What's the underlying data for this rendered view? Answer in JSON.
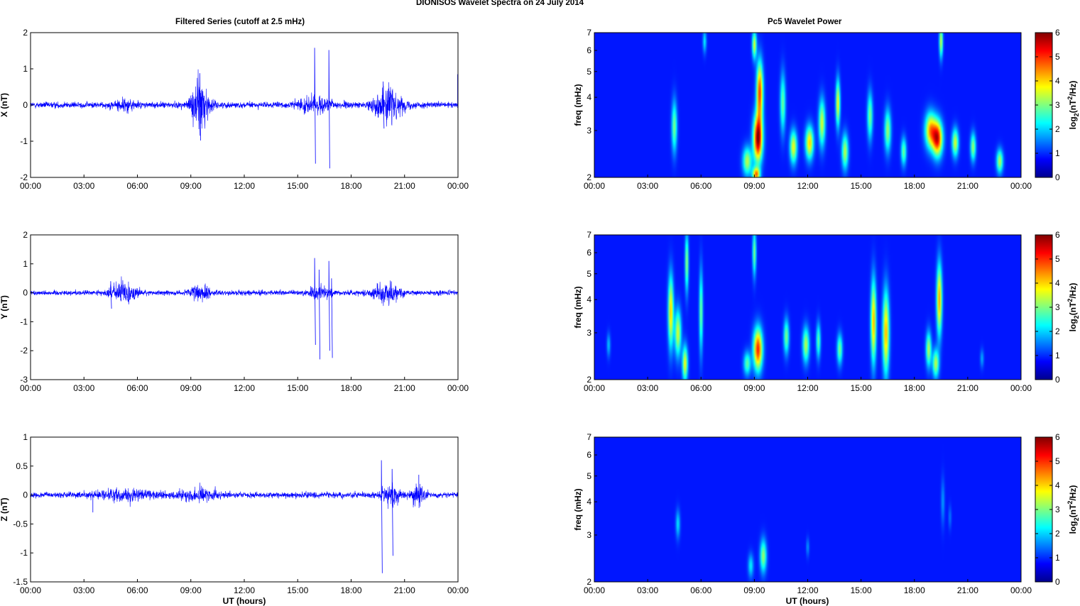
{
  "figure": {
    "title": "DIONISOS Wavelet Spectra on 24 July       2014",
    "left_title": "Filtered Series (cutoff at 2.5 mHz)",
    "right_title": "Pc5 Wavelet Power",
    "xlabel": "UT (hours)"
  },
  "chart_data": [
    {
      "type": "line",
      "component": "X",
      "ylabel": "X (nT)",
      "ylim": [
        -2,
        2
      ],
      "yticks": [
        2,
        1,
        0,
        -1,
        -2
      ],
      "xticks": [
        "00:00",
        "03:00",
        "06:00",
        "09:00",
        "12:00",
        "15:00",
        "18:00",
        "21:00",
        "00:00"
      ],
      "xlim_hours": [
        0,
        24
      ],
      "color": "#0000ff",
      "noise_amplitude_nT": 0.07,
      "bursts": [
        {
          "center_h": 5.3,
          "width_h": 0.6,
          "amp_nT": 0.12
        },
        {
          "center_h": 9.5,
          "width_h": 0.5,
          "amp_nT": 0.55
        },
        {
          "center_h": 20.1,
          "width_h": 0.7,
          "amp_nT": 0.4
        },
        {
          "center_h": 16.0,
          "width_h": 1.0,
          "amp_nT": 0.15
        }
      ],
      "spikes": [
        {
          "t_h": 9.5,
          "values_nT": [
            0.88,
            -0.98
          ]
        },
        {
          "t_h": 15.95,
          "values_nT": [
            1.58,
            -1.62
          ]
        },
        {
          "t_h": 16.75,
          "values_nT": [
            1.52,
            -1.75
          ]
        },
        {
          "t_h": 19.8,
          "values_nT": [
            0.65,
            -0.65
          ]
        },
        {
          "t_h": 23.98,
          "values_nT": [
            0.85
          ]
        }
      ]
    },
    {
      "type": "line",
      "component": "Y",
      "ylabel": "Y (nT)",
      "ylim": [
        -3,
        2
      ],
      "yticks": [
        2,
        1,
        0,
        -1,
        -2,
        -3
      ],
      "xticks": [
        "00:00",
        "03:00",
        "06:00",
        "09:00",
        "12:00",
        "15:00",
        "18:00",
        "21:00",
        "00:00"
      ],
      "xlim_hours": [
        0,
        24
      ],
      "color": "#0000ff",
      "noise_amplitude_nT": 0.07,
      "bursts": [
        {
          "center_h": 5.2,
          "width_h": 0.7,
          "amp_nT": 0.3
        },
        {
          "center_h": 9.5,
          "width_h": 0.5,
          "amp_nT": 0.25
        },
        {
          "center_h": 16.3,
          "width_h": 0.6,
          "amp_nT": 0.2
        },
        {
          "center_h": 19.9,
          "width_h": 0.7,
          "amp_nT": 0.35
        }
      ],
      "spikes": [
        {
          "t_h": 15.95,
          "values_nT": [
            1.2,
            -1.8
          ]
        },
        {
          "t_h": 16.2,
          "values_nT": [
            0.8,
            -2.3
          ]
        },
        {
          "t_h": 16.75,
          "values_nT": [
            1.1,
            -2.0
          ]
        },
        {
          "t_h": 16.9,
          "values_nT": [
            0.5,
            -2.25
          ]
        },
        {
          "t_h": 4.5,
          "values_nT": [
            0.4,
            -0.55
          ]
        }
      ]
    },
    {
      "type": "line",
      "component": "Z",
      "ylabel": "Z (nT)",
      "ylim": [
        -1.5,
        1
      ],
      "yticks": [
        1,
        0.5,
        0,
        -0.5,
        -1,
        -1.5
      ],
      "xticks": [
        "00:00",
        "03:00",
        "06:00",
        "09:00",
        "12:00",
        "15:00",
        "18:00",
        "21:00",
        "00:00"
      ],
      "xlim_hours": [
        0,
        24
      ],
      "color": "#0000ff",
      "noise_amplitude_nT": 0.04,
      "bursts": [
        {
          "center_h": 5.5,
          "width_h": 2.0,
          "amp_nT": 0.06
        },
        {
          "center_h": 9.5,
          "width_h": 1.0,
          "amp_nT": 0.08
        },
        {
          "center_h": 20.2,
          "width_h": 0.5,
          "amp_nT": 0.15
        },
        {
          "center_h": 21.8,
          "width_h": 0.4,
          "amp_nT": 0.12
        }
      ],
      "spikes": [
        {
          "t_h": 19.7,
          "values_nT": [
            0.6,
            -1.35
          ]
        },
        {
          "t_h": 20.3,
          "values_nT": [
            0.45,
            -1.05
          ]
        },
        {
          "t_h": 3.5,
          "values_nT": [
            -0.3
          ]
        },
        {
          "t_h": 21.8,
          "values_nT": [
            0.35
          ]
        }
      ]
    },
    {
      "type": "heatmap",
      "component": "X",
      "ylabel": "freq (mHz)",
      "yscale": "log",
      "ylim": [
        2,
        7
      ],
      "yticks": [
        2,
        3,
        4,
        5,
        6,
        7
      ],
      "xticks": [
        "00:00",
        "03:00",
        "06:00",
        "09:00",
        "12:00",
        "15:00",
        "18:00",
        "21:00",
        "00:00"
      ],
      "xlim_hours": [
        0,
        24
      ],
      "colorbar": {
        "label": "log2(nT2/Hz)",
        "range": [
          0,
          6
        ],
        "ticks": [
          0,
          1,
          2,
          3,
          4,
          5,
          6
        ],
        "colormap": "jet"
      },
      "blobs": [
        {
          "t_h": 4.5,
          "f_mHz": 3.1,
          "dt_h": 0.15,
          "span": 0.22,
          "peak": 2.4
        },
        {
          "t_h": 6.2,
          "f_mHz": 6.5,
          "dt_h": 0.1,
          "span": 0.1,
          "peak": 1.5
        },
        {
          "t_h": 8.6,
          "f_mHz": 2.3,
          "dt_h": 0.25,
          "span": 0.12,
          "peak": 2.8
        },
        {
          "t_h": 9.2,
          "f_mHz": 2.8,
          "dt_h": 0.25,
          "span": 0.2,
          "peak": 5.8
        },
        {
          "t_h": 9.3,
          "f_mHz": 4.2,
          "dt_h": 0.18,
          "span": 0.25,
          "peak": 4.6
        },
        {
          "t_h": 9.0,
          "f_mHz": 6.3,
          "dt_h": 0.12,
          "span": 0.12,
          "peak": 3.0
        },
        {
          "t_h": 9.1,
          "f_mHz": 2.05,
          "dt_h": 0.2,
          "span": 0.06,
          "peak": 4.0
        },
        {
          "t_h": 10.6,
          "f_mHz": 3.8,
          "dt_h": 0.15,
          "span": 0.25,
          "peak": 2.3
        },
        {
          "t_h": 11.2,
          "f_mHz": 2.6,
          "dt_h": 0.2,
          "span": 0.14,
          "peak": 3.2
        },
        {
          "t_h": 12.1,
          "f_mHz": 2.7,
          "dt_h": 0.22,
          "span": 0.14,
          "peak": 3.6
        },
        {
          "t_h": 12.8,
          "f_mHz": 3.2,
          "dt_h": 0.18,
          "span": 0.2,
          "peak": 3.0
        },
        {
          "t_h": 13.7,
          "f_mHz": 3.8,
          "dt_h": 0.12,
          "span": 0.2,
          "peak": 3.3
        },
        {
          "t_h": 14.1,
          "f_mHz": 2.5,
          "dt_h": 0.18,
          "span": 0.15,
          "peak": 2.8
        },
        {
          "t_h": 15.5,
          "f_mHz": 3.4,
          "dt_h": 0.15,
          "span": 0.2,
          "peak": 2.4
        },
        {
          "t_h": 16.5,
          "f_mHz": 3.0,
          "dt_h": 0.18,
          "span": 0.18,
          "peak": 2.6
        },
        {
          "t_h": 17.4,
          "f_mHz": 2.5,
          "dt_h": 0.15,
          "span": 0.12,
          "peak": 2.3
        },
        {
          "t_h": 18.9,
          "f_mHz": 3.0,
          "dt_h": 0.3,
          "span": 0.15,
          "peak": 3.8
        },
        {
          "t_h": 19.3,
          "f_mHz": 2.8,
          "dt_h": 0.28,
          "span": 0.15,
          "peak": 5.0
        },
        {
          "t_h": 19.5,
          "f_mHz": 6.5,
          "dt_h": 0.1,
          "span": 0.14,
          "peak": 3.0
        },
        {
          "t_h": 20.3,
          "f_mHz": 2.7,
          "dt_h": 0.18,
          "span": 0.12,
          "peak": 3.0
        },
        {
          "t_h": 21.3,
          "f_mHz": 2.6,
          "dt_h": 0.15,
          "span": 0.12,
          "peak": 2.6
        },
        {
          "t_h": 22.8,
          "f_mHz": 2.3,
          "dt_h": 0.18,
          "span": 0.1,
          "peak": 2.8
        }
      ]
    },
    {
      "type": "heatmap",
      "component": "Y",
      "ylabel": "freq (mHz)",
      "yscale": "log",
      "ylim": [
        2,
        7
      ],
      "yticks": [
        2,
        3,
        4,
        5,
        6,
        7
      ],
      "xticks": [
        "00:00",
        "03:00",
        "06:00",
        "09:00",
        "12:00",
        "15:00",
        "18:00",
        "21:00",
        "00:00"
      ],
      "xlim_hours": [
        0,
        24
      ],
      "colorbar": {
        "label": "log2(nT2/Hz)",
        "range": [
          0,
          6
        ],
        "ticks": [
          0,
          1,
          2,
          3,
          4,
          5,
          6
        ],
        "colormap": "jet"
      },
      "blobs": [
        {
          "t_h": 4.3,
          "f_mHz": 3.6,
          "dt_h": 0.15,
          "span": 0.3,
          "peak": 3.6
        },
        {
          "t_h": 4.7,
          "f_mHz": 3.0,
          "dt_h": 0.18,
          "span": 0.2,
          "peak": 3.0
        },
        {
          "t_h": 5.1,
          "f_mHz": 2.3,
          "dt_h": 0.15,
          "span": 0.15,
          "peak": 3.2
        },
        {
          "t_h": 5.2,
          "f_mHz": 5.5,
          "dt_h": 0.1,
          "span": 0.25,
          "peak": 2.6
        },
        {
          "t_h": 6.0,
          "f_mHz": 3.6,
          "dt_h": 0.1,
          "span": 0.35,
          "peak": 2.4
        },
        {
          "t_h": 9.2,
          "f_mHz": 2.6,
          "dt_h": 0.25,
          "span": 0.18,
          "peak": 4.8
        },
        {
          "t_h": 9.0,
          "f_mHz": 6.0,
          "dt_h": 0.1,
          "span": 0.2,
          "peak": 2.4
        },
        {
          "t_h": 8.6,
          "f_mHz": 2.3,
          "dt_h": 0.2,
          "span": 0.1,
          "peak": 2.2
        },
        {
          "t_h": 10.8,
          "f_mHz": 2.9,
          "dt_h": 0.15,
          "span": 0.15,
          "peak": 2.4
        },
        {
          "t_h": 11.9,
          "f_mHz": 2.7,
          "dt_h": 0.18,
          "span": 0.15,
          "peak": 2.8
        },
        {
          "t_h": 12.6,
          "f_mHz": 2.8,
          "dt_h": 0.12,
          "span": 0.15,
          "peak": 2.2
        },
        {
          "t_h": 13.8,
          "f_mHz": 2.6,
          "dt_h": 0.15,
          "span": 0.13,
          "peak": 2.4
        },
        {
          "t_h": 15.7,
          "f_mHz": 3.3,
          "dt_h": 0.15,
          "span": 0.35,
          "peak": 3.8
        },
        {
          "t_h": 16.4,
          "f_mHz": 3.0,
          "dt_h": 0.18,
          "span": 0.35,
          "peak": 3.8
        },
        {
          "t_h": 18.8,
          "f_mHz": 2.6,
          "dt_h": 0.15,
          "span": 0.15,
          "peak": 2.8
        },
        {
          "t_h": 19.4,
          "f_mHz": 4.0,
          "dt_h": 0.15,
          "span": 0.3,
          "peak": 3.9
        },
        {
          "t_h": 19.2,
          "f_mHz": 2.3,
          "dt_h": 0.18,
          "span": 0.12,
          "peak": 2.8
        },
        {
          "t_h": 0.8,
          "f_mHz": 2.7,
          "dt_h": 0.1,
          "span": 0.1,
          "peak": 1.2
        },
        {
          "t_h": 21.8,
          "f_mHz": 2.4,
          "dt_h": 0.1,
          "span": 0.08,
          "peak": 1.0
        }
      ]
    },
    {
      "type": "heatmap",
      "component": "Z",
      "ylabel": "freq (mHz)",
      "yscale": "log",
      "ylim": [
        2,
        7
      ],
      "yticks": [
        2,
        3,
        4,
        5,
        6,
        7
      ],
      "xticks": [
        "00:00",
        "03:00",
        "06:00",
        "09:00",
        "12:00",
        "15:00",
        "18:00",
        "21:00",
        "00:00"
      ],
      "xlim_hours": [
        0,
        24
      ],
      "colorbar": {
        "label": "log2(nT2/Hz)",
        "range": [
          0,
          6
        ],
        "ticks": [
          0,
          1,
          2,
          3,
          4,
          5,
          6
        ],
        "colormap": "jet"
      },
      "blobs": [
        {
          "t_h": 4.7,
          "f_mHz": 3.3,
          "dt_h": 0.12,
          "span": 0.12,
          "peak": 1.4
        },
        {
          "t_h": 9.5,
          "f_mHz": 2.5,
          "dt_h": 0.18,
          "span": 0.14,
          "peak": 2.6
        },
        {
          "t_h": 8.8,
          "f_mHz": 2.3,
          "dt_h": 0.15,
          "span": 0.1,
          "peak": 1.5
        },
        {
          "t_h": 12.0,
          "f_mHz": 2.7,
          "dt_h": 0.08,
          "span": 0.08,
          "peak": 0.9
        },
        {
          "t_h": 19.6,
          "f_mHz": 4.0,
          "dt_h": 0.1,
          "span": 0.2,
          "peak": 0.9
        },
        {
          "t_h": 20.0,
          "f_mHz": 3.5,
          "dt_h": 0.08,
          "span": 0.1,
          "peak": 0.7
        }
      ]
    }
  ]
}
